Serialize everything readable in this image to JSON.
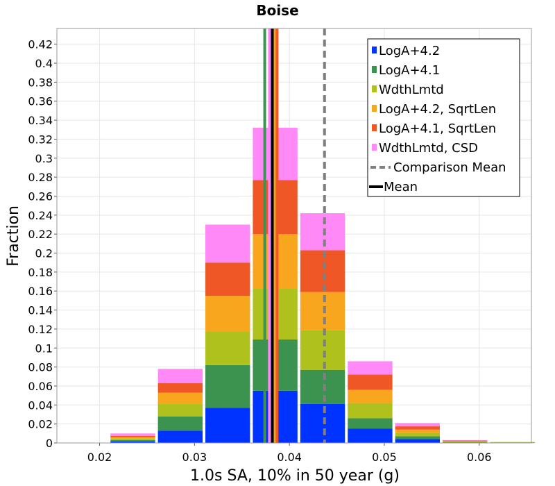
{
  "chart_data": {
    "type": "bar",
    "stacked": true,
    "title": "Boise",
    "xlabel": "1.0s SA, 10% in 50 year (g)",
    "ylabel": "Fraction",
    "xlim": [
      0.0155,
      0.0655
    ],
    "ylim": [
      0,
      0.4366
    ],
    "x_ticks": [
      0.02,
      0.03,
      0.04,
      0.05,
      0.06
    ],
    "x_tick_labels": [
      "0.02",
      "0.03",
      "0.04",
      "0.05",
      "0.06"
    ],
    "y_ticks": [
      0,
      0.02,
      0.04,
      0.06,
      0.08,
      0.1,
      0.12,
      0.14,
      0.16,
      0.18,
      0.2,
      0.22,
      0.24,
      0.26,
      0.28,
      0.3,
      0.32,
      0.34,
      0.36,
      0.38,
      0.4,
      0.42
    ],
    "y_tick_labels": [
      "0",
      "0.02",
      "0.04",
      "0.06",
      "0.08",
      "0.1",
      "0.12",
      "0.14",
      "0.16",
      "0.18",
      "0.2",
      "0.22",
      "0.24",
      "0.26",
      "0.28",
      "0.3",
      "0.32",
      "0.34",
      "0.36",
      "0.38",
      "0.4",
      "0.42"
    ],
    "bin_centers": [
      0.0185,
      0.0235,
      0.0285,
      0.0335,
      0.0385,
      0.0435,
      0.0485,
      0.0535,
      0.0585,
      0.0635
    ],
    "bin_width": 0.005,
    "series": [
      {
        "name": "LogA+4.2",
        "color": "#0033ff",
        "values": [
          0,
          0.0015,
          0.013,
          0.037,
          0.055,
          0.041,
          0.015,
          0.004,
          0.0005,
          0
        ]
      },
      {
        "name": "LogA+4.1",
        "color": "#3c9350",
        "values": [
          0,
          0.0015,
          0.015,
          0.045,
          0.054,
          0.036,
          0.011,
          0.003,
          0.0005,
          0.0005
        ]
      },
      {
        "name": "WdthLmtd",
        "color": "#afc11c",
        "values": [
          0,
          0.0015,
          0.013,
          0.035,
          0.054,
          0.042,
          0.016,
          0.0035,
          0.0005,
          0.0005
        ]
      },
      {
        "name": "LogA+4.2, SqrtLen",
        "color": "#f9a61f",
        "values": [
          0,
          0.0015,
          0.012,
          0.038,
          0.057,
          0.04,
          0.014,
          0.0035,
          0.0005,
          0
        ]
      },
      {
        "name": "LogA+4.1, SqrtLen",
        "color": "#ef5727",
        "values": [
          0,
          0.0015,
          0.01,
          0.035,
          0.057,
          0.044,
          0.016,
          0.0035,
          0.0005,
          0
        ]
      },
      {
        "name": "WdthLmtd, CSD",
        "color": "#ff8af7",
        "values": [
          0,
          0.0025,
          0.015,
          0.04,
          0.055,
          0.039,
          0.014,
          0.0035,
          0.0005,
          0
        ]
      }
    ],
    "mean_lines": [
      {
        "series": "LogA+4.2",
        "color": "#0033ff",
        "x": 0.0381
      },
      {
        "series": "LogA+4.1",
        "color": "#3c9350",
        "x": 0.0374
      },
      {
        "series": "WdthLmtd",
        "color": "#afc11c",
        "x": 0.0386
      },
      {
        "series": "LogA+4.2, SqrtLen",
        "color": "#f9a61f",
        "x": 0.0384
      },
      {
        "series": "LogA+4.1, SqrtLen",
        "color": "#ef5727",
        "x": 0.0387
      },
      {
        "series": "WdthLmtd, CSD",
        "color": "#ff8af7",
        "x": 0.0379
      }
    ],
    "overall_mean": {
      "label": "Mean",
      "x": 0.0382,
      "color": "#000000"
    },
    "comparison_mean": {
      "label": "Comparison Mean",
      "x": 0.0437,
      "color": "#808080"
    },
    "legend_position": "top-right",
    "grid": true
  }
}
